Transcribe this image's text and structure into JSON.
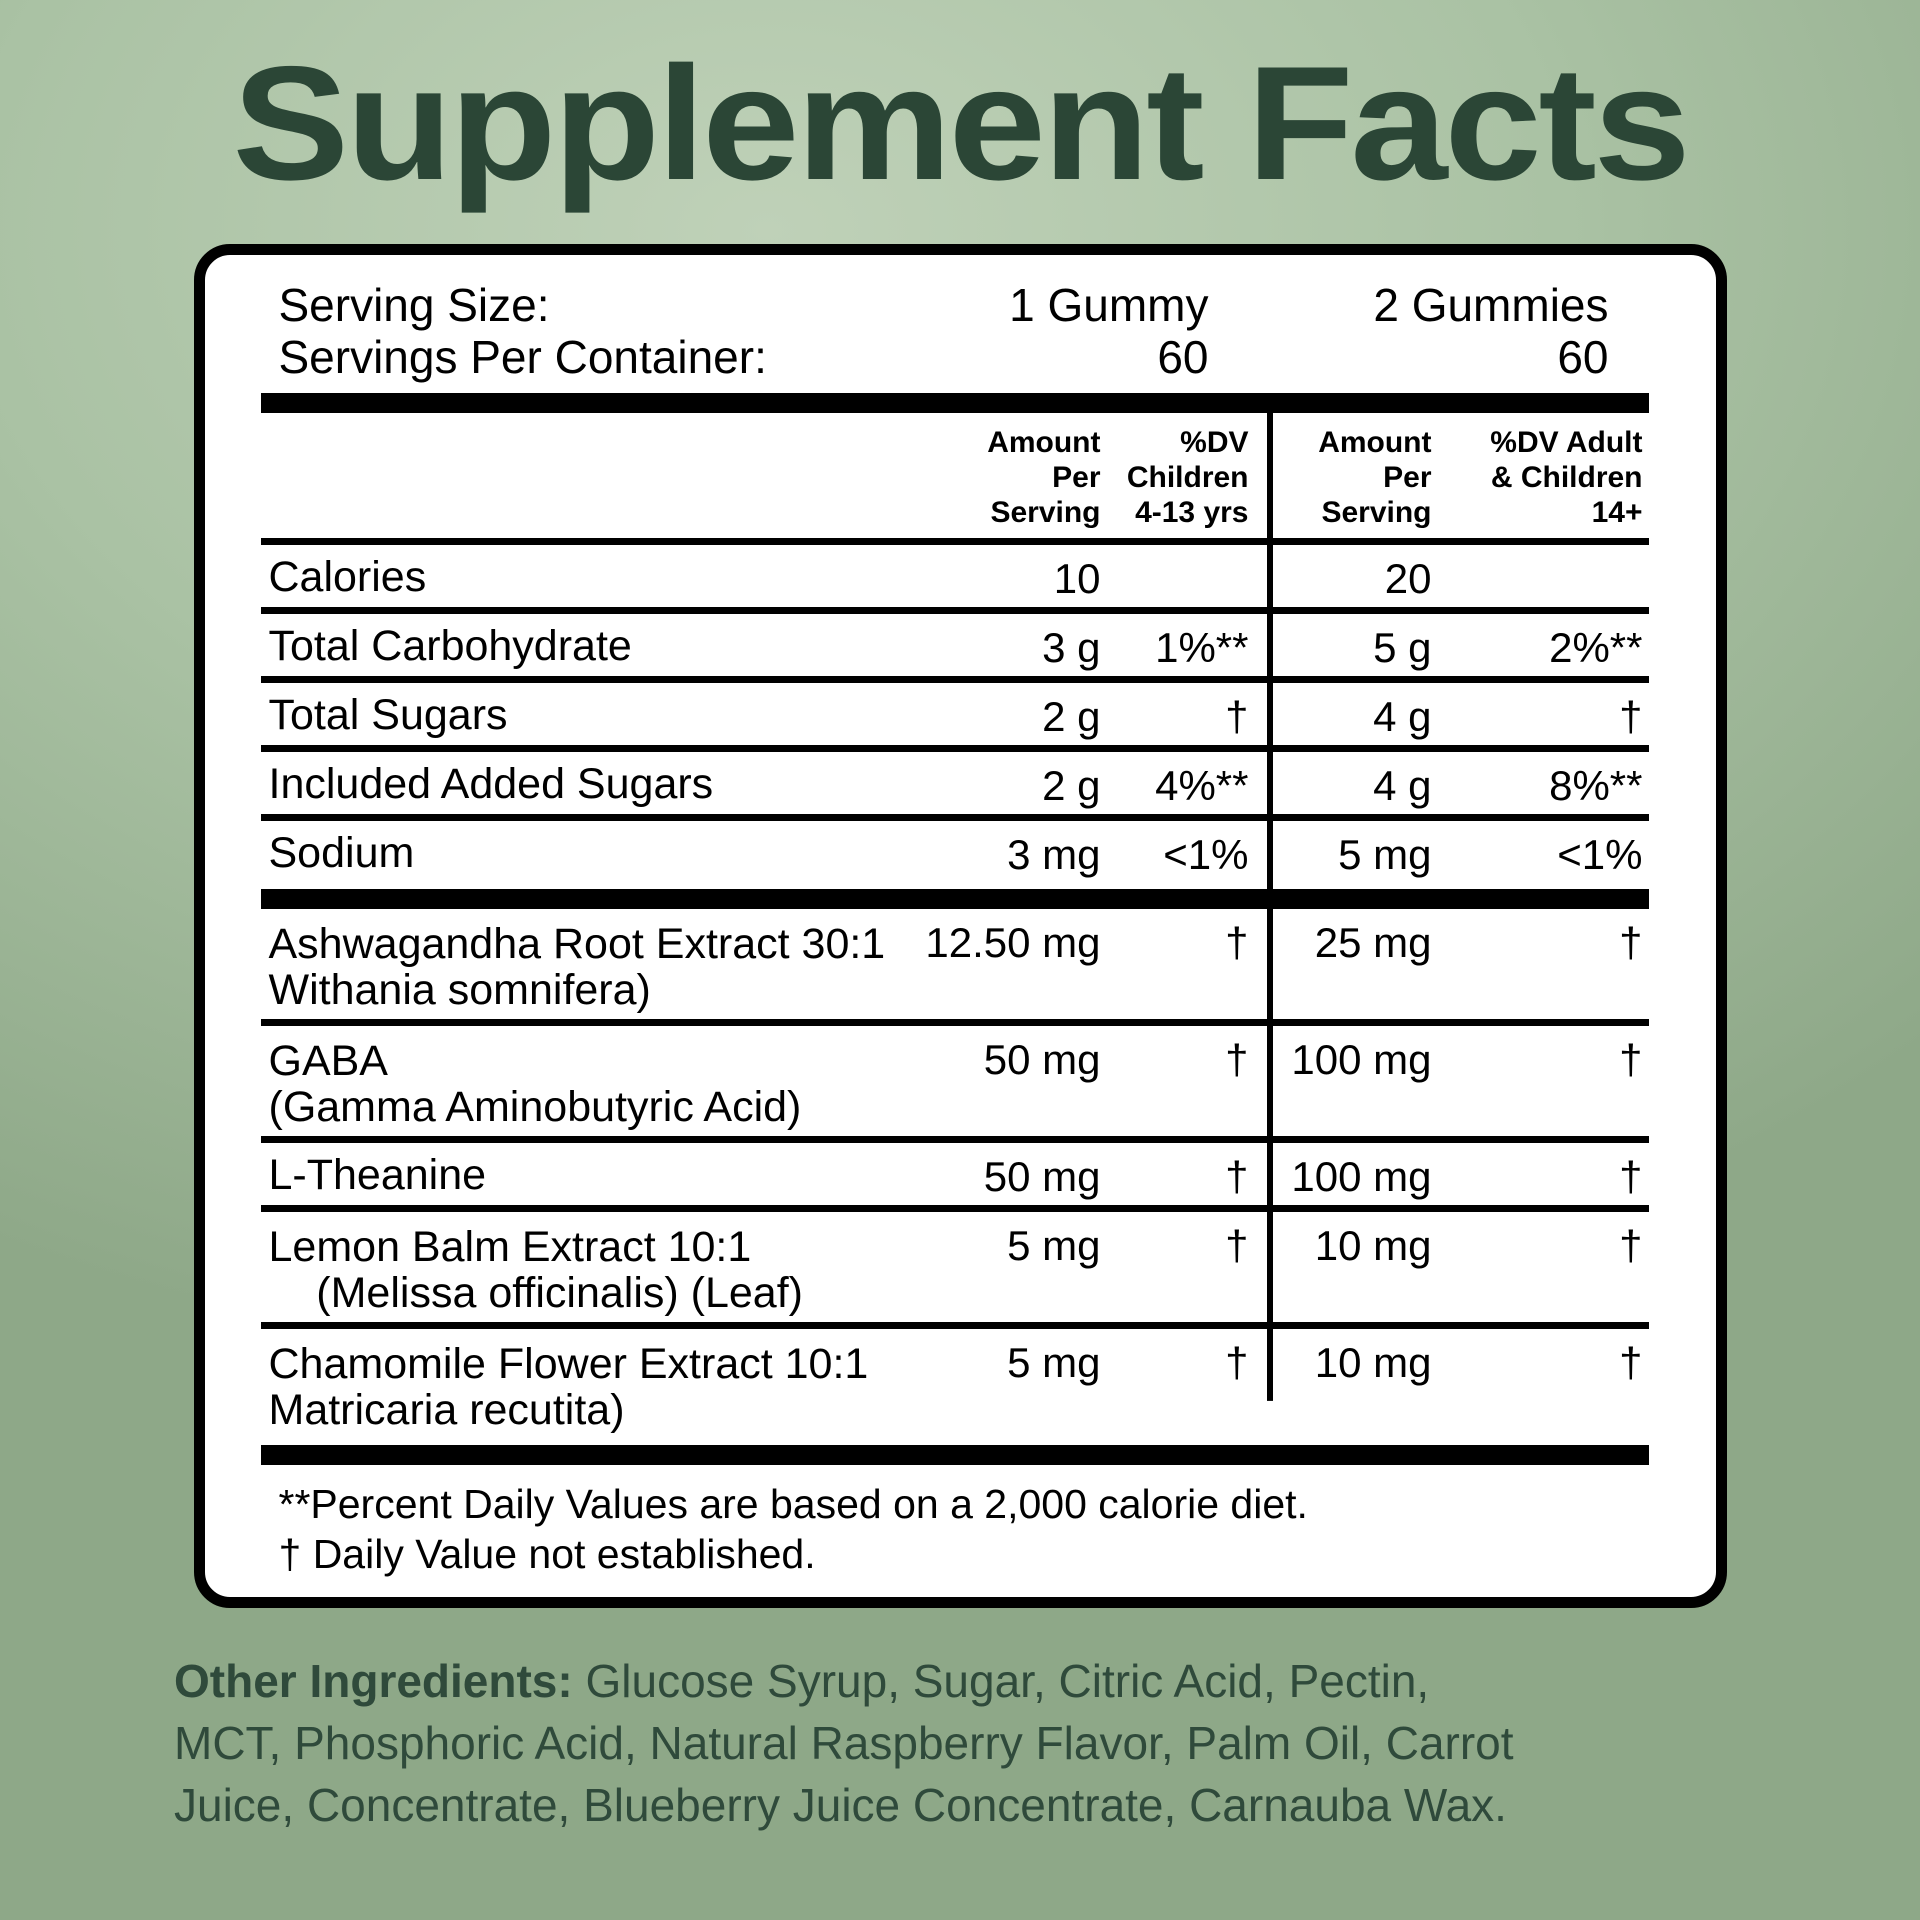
{
  "title": "Supplement Facts",
  "colors": {
    "background_light": "#bfd1b8",
    "background_dark": "#8ea888",
    "title_text": "#2b4636",
    "panel_background": "#ffffff",
    "panel_border": "#000000",
    "table_text": "#000000",
    "other_ingredients_text": "#2f4a3b"
  },
  "panel": {
    "serving": {
      "rows": [
        {
          "label": "Serving Size:",
          "value1": "1 Gummy",
          "value2": "2 Gummies"
        },
        {
          "label": "Servings Per Container:",
          "value1": "60",
          "value2": "60"
        }
      ]
    },
    "table": {
      "headers": {
        "amount1": "Amount\nPer\nServing",
        "dv1": "%DV\nChildren\n4-13 yrs",
        "amount2": "Amount\nPer\nServing",
        "dv2": "%DV Adult\n& Children\n14+"
      },
      "rows": [
        {
          "name": "Calories",
          "sub": "",
          "amt1": "10",
          "dv1": "",
          "amt2": "20",
          "dv2": ""
        },
        {
          "name": "Total Carbohydrate",
          "sub": "",
          "amt1": "3 g",
          "dv1": "1%**",
          "amt2": "5 g",
          "dv2": "2%**"
        },
        {
          "name": "Total Sugars",
          "sub": "",
          "amt1": "2 g",
          "dv1": "†",
          "amt2": "4 g",
          "dv2": "†"
        },
        {
          "name": "Included Added Sugars",
          "sub": "",
          "amt1": "2 g",
          "dv1": "4%**",
          "amt2": "4 g",
          "dv2": "8%**"
        },
        {
          "name": "Sodium",
          "sub": "",
          "amt1": "3 mg",
          "dv1": "<1%",
          "amt2": "5 mg",
          "dv2": "<1%"
        },
        {
          "name": "Ashwagandha Root Extract 30:1",
          "sub": "Withania somnifera)",
          "amt1": "12.50 mg",
          "dv1": "†",
          "amt2": "25 mg",
          "dv2": "†"
        },
        {
          "name": "GABA",
          "sub": "(Gamma Aminobutyric Acid)",
          "amt1": "50 mg",
          "dv1": "†",
          "amt2": "100 mg",
          "dv2": "†"
        },
        {
          "name": "L-Theanine",
          "sub": "",
          "amt1": "50 mg",
          "dv1": "†",
          "amt2": "100 mg",
          "dv2": "†"
        },
        {
          "name": "Lemon Balm Extract 10:1",
          "sub": "    (Melissa officinalis) (Leaf)",
          "amt1": "5 mg",
          "dv1": "†",
          "amt2": "10 mg",
          "dv2": "†"
        },
        {
          "name": "Chamomile Flower Extract 10:1",
          "sub": "Matricaria recutita)",
          "amt1": "5 mg",
          "dv1": "†",
          "amt2": "10 mg",
          "dv2": "†"
        }
      ]
    },
    "footnotes": [
      "**Percent Daily Values are based on a 2,000 calorie diet.",
      "† Daily Value not established."
    ]
  },
  "other_ingredients": {
    "label": "Other Ingredients:",
    "line1_rest": " Glucose Syrup, Sugar, Citric Acid, Pectin,",
    "line2": "MCT, Phosphoric Acid, Natural Raspberry Flavor, Palm Oil, Carrot",
    "line3": "Juice, Concentrate, Blueberry Juice Concentrate, Carnauba Wax."
  }
}
